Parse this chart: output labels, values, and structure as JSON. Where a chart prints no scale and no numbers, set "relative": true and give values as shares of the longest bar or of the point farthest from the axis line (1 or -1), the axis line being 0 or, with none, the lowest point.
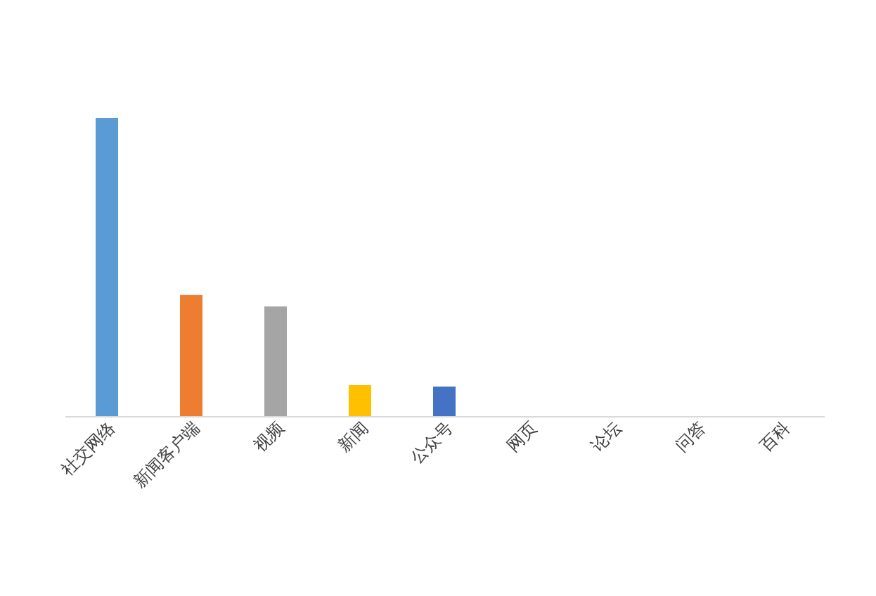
{
  "chart_data": {
    "type": "bar",
    "relative": true,
    "categories": [
      "社交网络",
      "新闻客户端",
      "视频",
      "新闻",
      "公众号",
      "网页",
      "论坛",
      "问答",
      "百科"
    ],
    "values": [
      1,
      0.406,
      0.368,
      0.104,
      0.099,
      0,
      0,
      0,
      0
    ],
    "colors": [
      "#5b9bd5",
      "#ed7d31",
      "#a5a5a5",
      "#ffc000",
      "#4472c4",
      "#70ad47",
      "#255e91",
      "#9e480e",
      "#636363"
    ],
    "grid": false
  }
}
